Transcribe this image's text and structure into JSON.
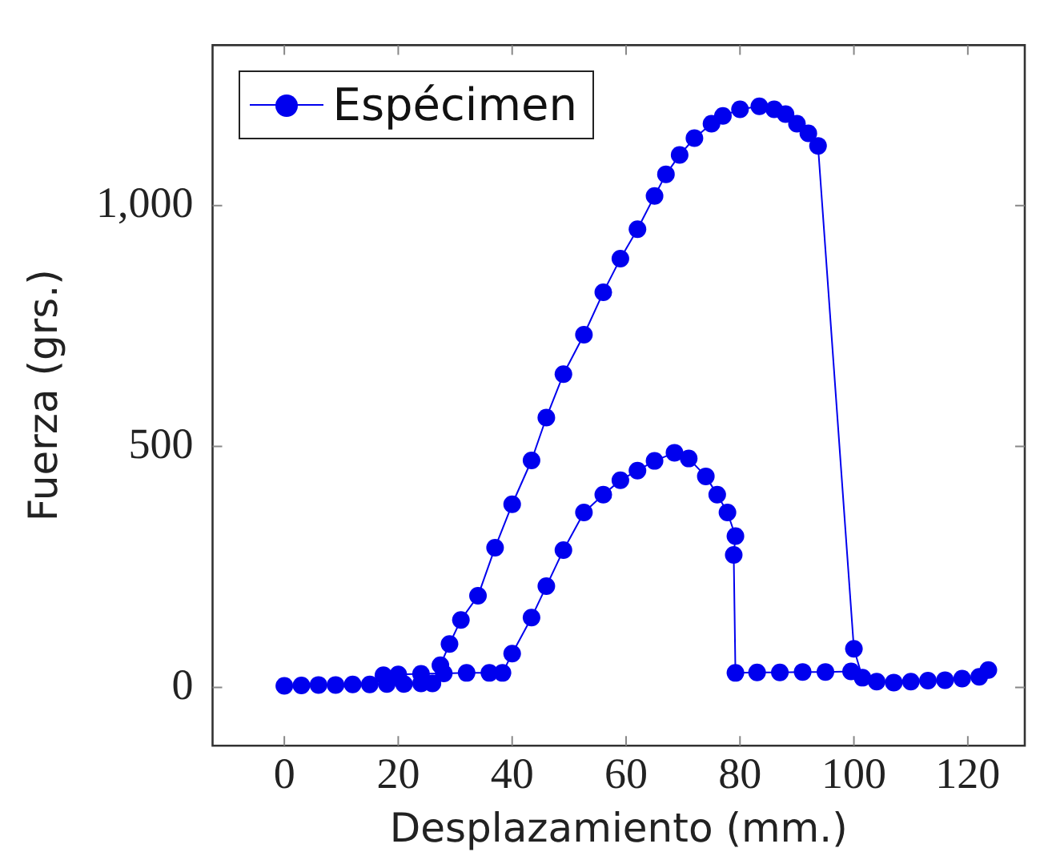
{
  "chart_data": {
    "type": "line",
    "xlabel": "Desplazamiento (mm.)",
    "ylabel": "Fuerza (grs.)",
    "xlim": [
      -12.6,
      130
    ],
    "ylim": [
      -121,
      1333
    ],
    "xticks": [
      0,
      20,
      40,
      60,
      80,
      100,
      120
    ],
    "yticks": [
      0,
      500,
      {
        "value": 1000,
        "label": "1,000"
      }
    ],
    "grid": false,
    "legend": "top left",
    "marker": "circle",
    "line_style": "solid",
    "series": [
      {
        "name": "Espécimen",
        "color": "#0000ee",
        "x": [
          0,
          3,
          6,
          9,
          12,
          15,
          18,
          21,
          24,
          26,
          27.4,
          29,
          31,
          34,
          37,
          40,
          43.4,
          46,
          49,
          52.6,
          56,
          59,
          62,
          65,
          67,
          69.4,
          72,
          75,
          77,
          80,
          83.4,
          86,
          88,
          90,
          92,
          93.7,
          100,
          101.5,
          104,
          107,
          110,
          113,
          116,
          119,
          122,
          123.6,
          null,
          17.4,
          20,
          24,
          28,
          32,
          36,
          38.3,
          40,
          43.4,
          46,
          49,
          52.6,
          56,
          59,
          62,
          65,
          68.5,
          71,
          74,
          76,
          77.8,
          79.2,
          78.9,
          79.2,
          83,
          87,
          91,
          95,
          99.5
        ],
        "values": [
          3,
          4,
          5,
          5,
          6,
          6,
          7,
          7,
          8,
          8,
          46,
          90,
          140,
          190,
          290,
          380,
          471,
          560,
          650,
          732,
          820,
          890,
          951,
          1020,
          1065,
          1105,
          1140,
          1170,
          1186,
          1200,
          1206,
          1200,
          1190,
          1170,
          1150,
          1124,
          80,
          20,
          12,
          10,
          12,
          14,
          15,
          18,
          22,
          36,
          null,
          25,
          27,
          28,
          29,
          30,
          30,
          30,
          70,
          145,
          210,
          285,
          363,
          400,
          430,
          450,
          470,
          487,
          475,
          438,
          400,
          363,
          314,
          275,
          30,
          31,
          31,
          32,
          32,
          33
        ]
      }
    ]
  }
}
